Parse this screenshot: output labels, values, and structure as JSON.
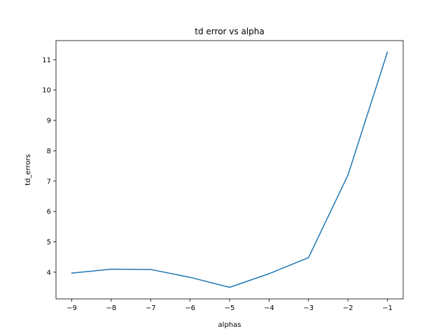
{
  "chart_data": {
    "type": "line",
    "title": "td error vs alpha",
    "xlabel": "alphas",
    "ylabel": "td_errors",
    "x": [
      -9,
      -8,
      -7,
      -6,
      -5,
      -4,
      -3,
      -2,
      -1
    ],
    "series": [
      {
        "values": [
          3.97,
          4.1,
          4.09,
          3.83,
          3.5,
          3.95,
          4.48,
          7.2,
          11.25
        ],
        "color": "#1f77b4"
      }
    ],
    "xlim": [
      -9.4,
      -0.6
    ],
    "ylim": [
      3.12,
      11.63
    ],
    "xticks": [
      -9,
      -8,
      -7,
      -6,
      -5,
      -4,
      -3,
      -2,
      -1
    ],
    "xtick_labels": [
      "−9",
      "−8",
      "−7",
      "−6",
      "−5",
      "−4",
      "−3",
      "−2",
      "−1"
    ],
    "yticks": [
      4,
      5,
      6,
      7,
      8,
      9,
      10,
      11
    ],
    "ytick_labels": [
      "4",
      "5",
      "6",
      "7",
      "8",
      "9",
      "10",
      "11"
    ],
    "grid": false,
    "legend": "none"
  }
}
